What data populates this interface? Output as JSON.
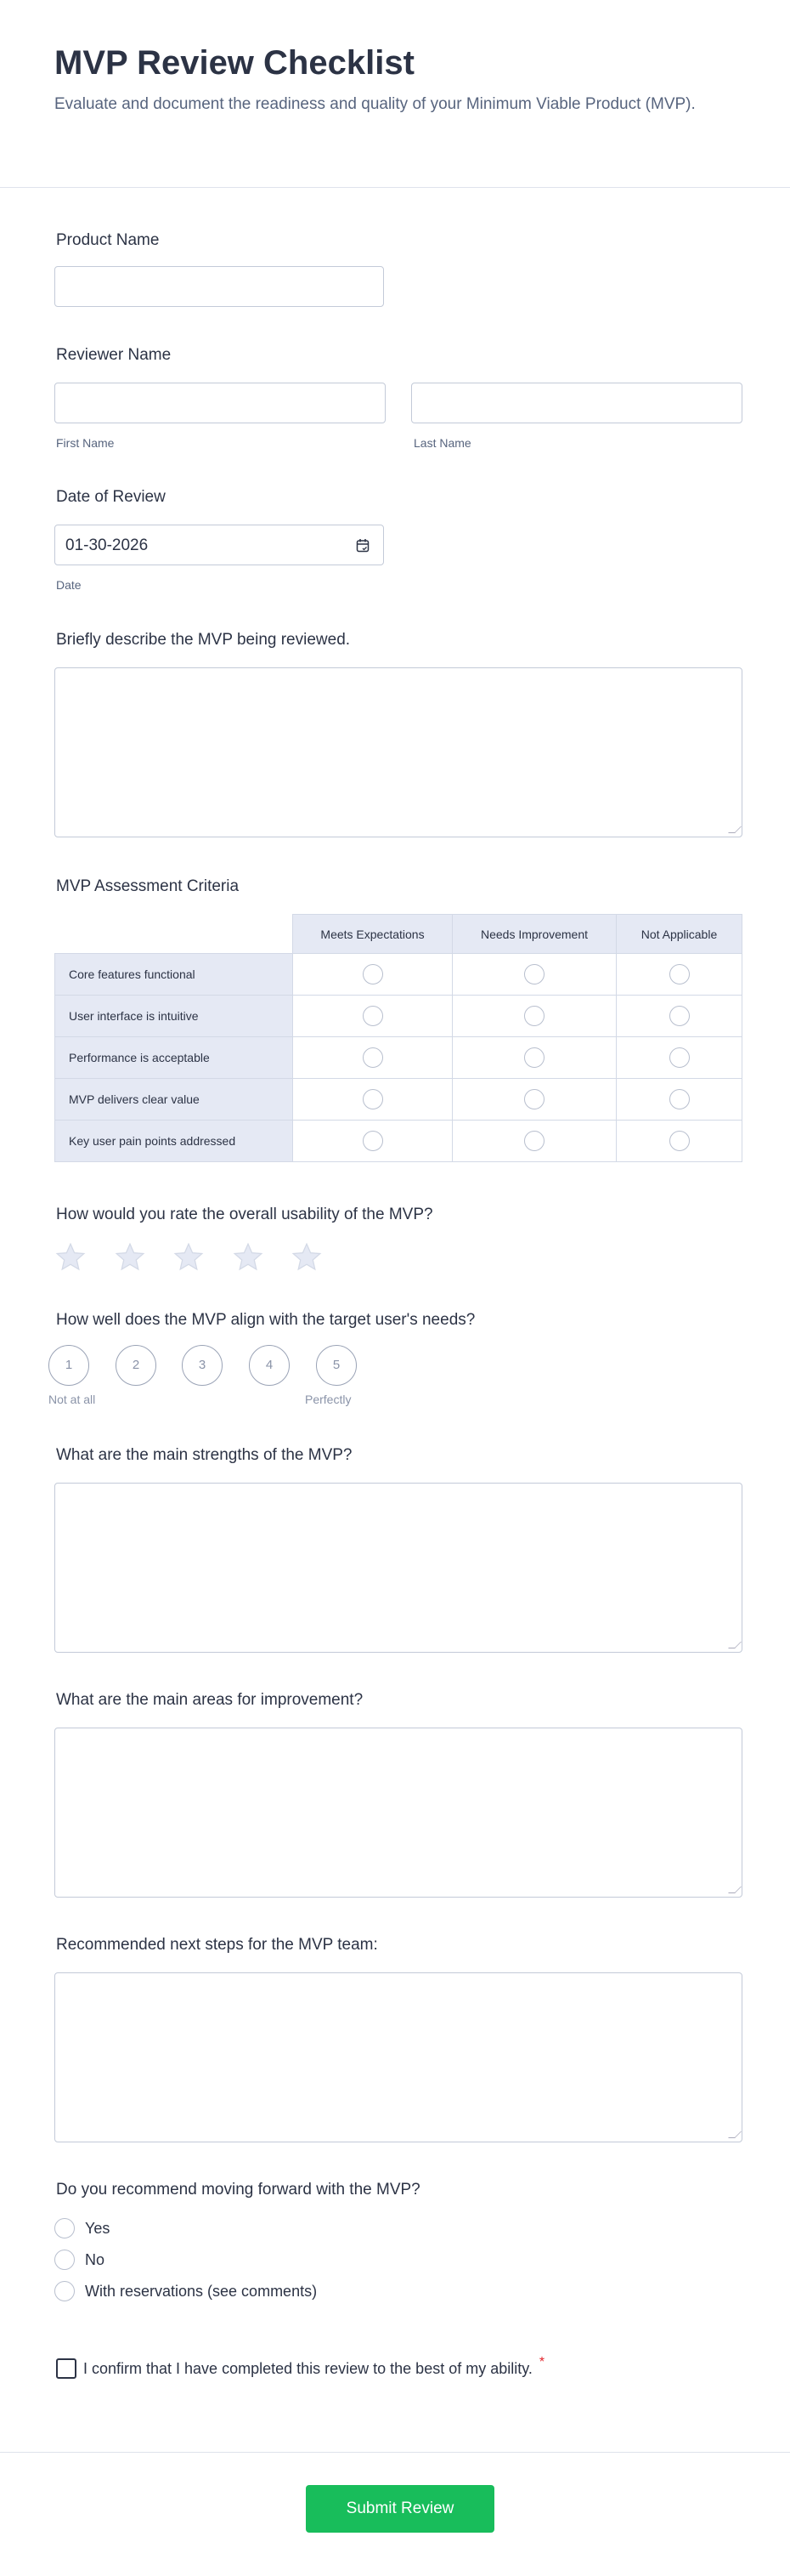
{
  "header": {
    "title": "MVP Review Checklist",
    "subtitle": "Evaluate and document the readiness and quality of your Minimum Viable Product (MVP)."
  },
  "fields": {
    "product_name": {
      "label": "Product Name",
      "value": ""
    },
    "reviewer_name": {
      "label": "Reviewer Name",
      "first_sublabel": "First Name",
      "last_sublabel": "Last Name"
    },
    "date": {
      "label": "Date of Review",
      "value": "01-30-2026",
      "sublabel": "Date",
      "icon": "calendar-icon"
    },
    "description": {
      "label": "Briefly describe the MVP being reviewed."
    }
  },
  "matrix": {
    "label": "MVP Assessment Criteria",
    "columns": [
      "Meets Expectations",
      "Needs Improvement",
      "Not Applicable"
    ],
    "rows": [
      "Core features functional",
      "User interface is intuitive",
      "Performance is acceptable",
      "MVP delivers clear value",
      "Key user pain points addressed"
    ]
  },
  "usability": {
    "label": "How would you rate the overall usability of the MVP?",
    "max_stars": 5,
    "value": 0
  },
  "alignment": {
    "label": "How well does the MVP align with the target user's needs?",
    "options": [
      "1",
      "2",
      "3",
      "4",
      "5"
    ],
    "min_label": "Not at all",
    "max_label": "Perfectly"
  },
  "strengths": {
    "label": "What are the main strengths of the MVP?"
  },
  "improvements": {
    "label": "What are the main areas for improvement?"
  },
  "next_steps": {
    "label": "Recommended next steps for the MVP team:"
  },
  "recommend": {
    "label": "Do you recommend moving forward with the MVP?",
    "options": [
      "Yes",
      "No",
      "With reservations (see comments)"
    ]
  },
  "confirm": {
    "label": "I confirm that I have completed this review to the best of my ability.",
    "required_mark": "*"
  },
  "submit": {
    "label": "Submit Review"
  },
  "colors": {
    "accent": "#18bd5b",
    "required": "#e3242b",
    "matrix_bg": "#e5e9f4"
  }
}
